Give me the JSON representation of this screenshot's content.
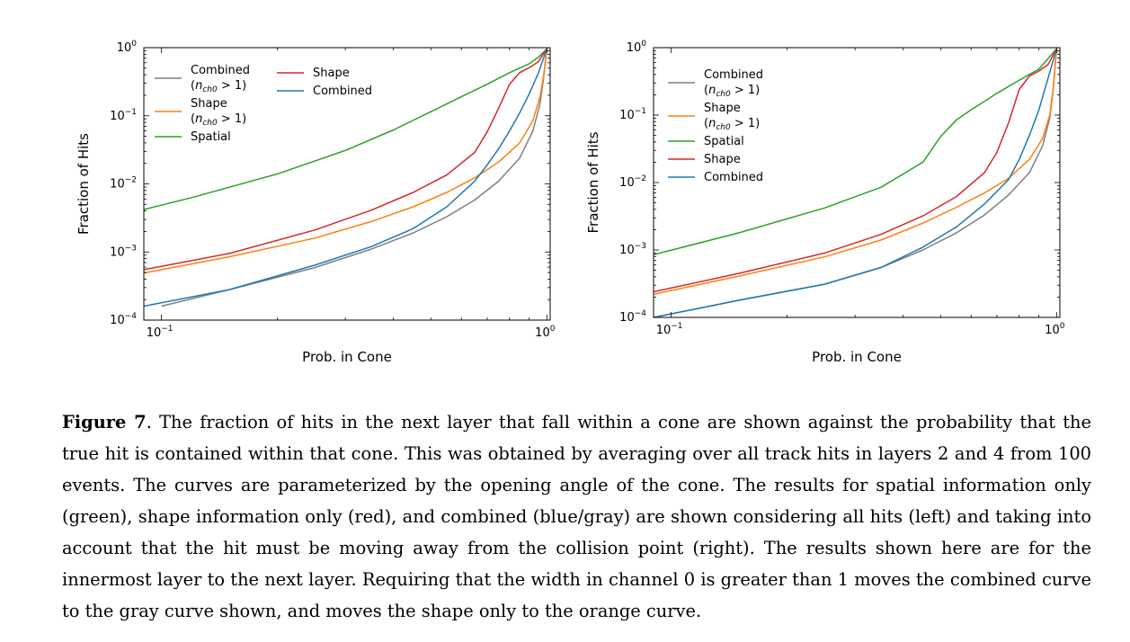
{
  "figure": {
    "label": "Figure 7",
    "caption": "The fraction of hits in the next layer that fall within a cone are shown against the probability that the true hit is contained within that cone. This was obtained by averaging over all track hits in layers 2 and 4 from 100 events. The curves are parameterized by the opening angle of the cone. The results for spatial information only (green), shape information only (red), and combined (blue/gray) are shown considering all hits (left) and taking into account that the hit must be moving away from the collision point (right). The results shown here are for the innermost layer to the next layer. Requiring that the width in channel 0 is greater than 1 moves the combined curve to the gray curve shown, and moves the shape only to the orange curve."
  },
  "colors": {
    "gray": "#7f7f7f",
    "orange": "#ff7f0e",
    "green": "#2ca02c",
    "red": "#d62728",
    "blue": "#1f77b4"
  },
  "chart_data": [
    {
      "type": "line",
      "panel": "left",
      "xlabel": "Prob. in Cone",
      "ylabel": "Fraction of Hits",
      "xscale": "log",
      "yscale": "log",
      "xlim": [
        0.09,
        1.02
      ],
      "ylim": [
        0.0001,
        1.0
      ],
      "xticklabels": [
        "10",
        "10"
      ],
      "xtickexp": [
        "−1",
        "0"
      ],
      "yticklabels": [
        "10",
        "10",
        "10",
        "10",
        "10"
      ],
      "ytickexp": [
        "0",
        "−1",
        "−2",
        "−3",
        "−4"
      ],
      "legend": {
        "placement": "top-left, two columns"
      },
      "series": [
        {
          "name": "Combined",
          "sub": "(n",
          "subidx": "ch0",
          "subrest": " > 1)",
          "color": "#7f7f7f",
          "x": [
            0.1,
            0.15,
            0.25,
            0.35,
            0.45,
            0.55,
            0.65,
            0.75,
            0.85,
            0.92,
            0.96,
            0.98,
            1.0
          ],
          "y": [
            0.00016,
            0.00028,
            0.00059,
            0.0011,
            0.0019,
            0.0033,
            0.0058,
            0.011,
            0.024,
            0.06,
            0.15,
            0.35,
            0.96
          ]
        },
        {
          "name": "Shape",
          "sub": "(n",
          "subidx": "ch0",
          "subrest": " > 1)",
          "color": "#ff7f0e",
          "x": [
            0.09,
            0.15,
            0.25,
            0.35,
            0.45,
            0.55,
            0.65,
            0.75,
            0.85,
            0.92,
            0.96,
            0.98,
            1.0
          ],
          "y": [
            0.00049,
            0.00085,
            0.0016,
            0.0028,
            0.0046,
            0.0075,
            0.0123,
            0.021,
            0.04,
            0.085,
            0.19,
            0.38,
            0.96
          ]
        },
        {
          "name": "Spatial",
          "color": "#2ca02c",
          "x": [
            0.09,
            0.12,
            0.2,
            0.3,
            0.4,
            0.5,
            0.6,
            0.7,
            0.8,
            0.9,
            0.95,
            1.0
          ],
          "y": [
            0.0042,
            0.0063,
            0.014,
            0.031,
            0.062,
            0.115,
            0.19,
            0.29,
            0.43,
            0.58,
            0.72,
            0.96
          ]
        },
        {
          "name": "Shape",
          "color": "#d62728",
          "x": [
            0.09,
            0.15,
            0.25,
            0.35,
            0.45,
            0.55,
            0.65,
            0.7,
            0.75,
            0.8,
            0.85,
            0.9,
            0.95,
            1.0
          ],
          "y": [
            0.00055,
            0.00095,
            0.0021,
            0.0041,
            0.0075,
            0.0135,
            0.029,
            0.058,
            0.13,
            0.29,
            0.43,
            0.51,
            0.62,
            0.96
          ]
        },
        {
          "name": "Combined",
          "color": "#1f77b4",
          "x": [
            0.09,
            0.15,
            0.25,
            0.35,
            0.45,
            0.55,
            0.65,
            0.7,
            0.75,
            0.8,
            0.85,
            0.9,
            0.95,
            1.0
          ],
          "y": [
            0.00016,
            0.00028,
            0.00064,
            0.0012,
            0.0022,
            0.0046,
            0.011,
            0.019,
            0.033,
            0.06,
            0.11,
            0.21,
            0.42,
            0.96
          ]
        }
      ]
    },
    {
      "type": "line",
      "panel": "right",
      "xlabel": "Prob. in Cone",
      "ylabel": "Fraction of Hits",
      "xscale": "log",
      "yscale": "log",
      "xlim": [
        0.09,
        1.02
      ],
      "ylim": [
        0.0001,
        1.0
      ],
      "xticklabels": [
        "10",
        "10"
      ],
      "xtickexp": [
        "−1",
        "0"
      ],
      "yticklabels": [
        "10",
        "10",
        "10",
        "10",
        "10"
      ],
      "ytickexp": [
        "0",
        "−1",
        "−2",
        "−3",
        "−4"
      ],
      "legend": {
        "placement": "top-left"
      },
      "series": [
        {
          "name": "Combined",
          "sub": "(n",
          "subidx": "ch0",
          "subrest": " > 1)",
          "color": "#7f7f7f",
          "x": [
            0.09,
            0.15,
            0.25,
            0.35,
            0.45,
            0.55,
            0.65,
            0.75,
            0.85,
            0.92,
            0.96,
            0.98,
            1.0
          ],
          "y": [
            0.0001,
            0.00018,
            0.00031,
            0.00055,
            0.001,
            0.0018,
            0.0033,
            0.0065,
            0.014,
            0.035,
            0.09,
            0.24,
            0.96
          ]
        },
        {
          "name": "Shape",
          "sub": "(n",
          "subidx": "ch0",
          "subrest": " > 1)",
          "color": "#ff7f0e",
          "x": [
            0.09,
            0.15,
            0.25,
            0.35,
            0.45,
            0.55,
            0.65,
            0.75,
            0.85,
            0.92,
            0.96,
            0.98,
            1.0
          ],
          "y": [
            0.00022,
            0.00041,
            0.00079,
            0.0014,
            0.0025,
            0.0043,
            0.007,
            0.0115,
            0.022,
            0.045,
            0.1,
            0.25,
            0.96
          ]
        },
        {
          "name": "Spatial",
          "color": "#2ca02c",
          "x": [
            0.09,
            0.15,
            0.25,
            0.35,
            0.45,
            0.5,
            0.55,
            0.6,
            0.65,
            0.7,
            0.8,
            0.9,
            1.0
          ],
          "y": [
            0.00085,
            0.0018,
            0.0042,
            0.0085,
            0.02,
            0.048,
            0.085,
            0.12,
            0.16,
            0.21,
            0.33,
            0.48,
            0.96
          ]
        },
        {
          "name": "Shape",
          "color": "#d62728",
          "x": [
            0.09,
            0.15,
            0.25,
            0.35,
            0.45,
            0.55,
            0.65,
            0.7,
            0.75,
            0.8,
            0.85,
            0.9,
            0.95,
            1.0
          ],
          "y": [
            0.00024,
            0.00045,
            0.0009,
            0.0017,
            0.0032,
            0.0062,
            0.014,
            0.028,
            0.076,
            0.24,
            0.38,
            0.45,
            0.56,
            0.96
          ]
        },
        {
          "name": "Combined",
          "color": "#1f77b4",
          "x": [
            0.09,
            0.15,
            0.25,
            0.35,
            0.45,
            0.55,
            0.65,
            0.75,
            0.8,
            0.85,
            0.9,
            0.95,
            1.0
          ],
          "y": [
            0.0001,
            0.00018,
            0.00031,
            0.00055,
            0.0011,
            0.0022,
            0.0048,
            0.011,
            0.022,
            0.05,
            0.12,
            0.35,
            0.96
          ]
        }
      ]
    }
  ]
}
